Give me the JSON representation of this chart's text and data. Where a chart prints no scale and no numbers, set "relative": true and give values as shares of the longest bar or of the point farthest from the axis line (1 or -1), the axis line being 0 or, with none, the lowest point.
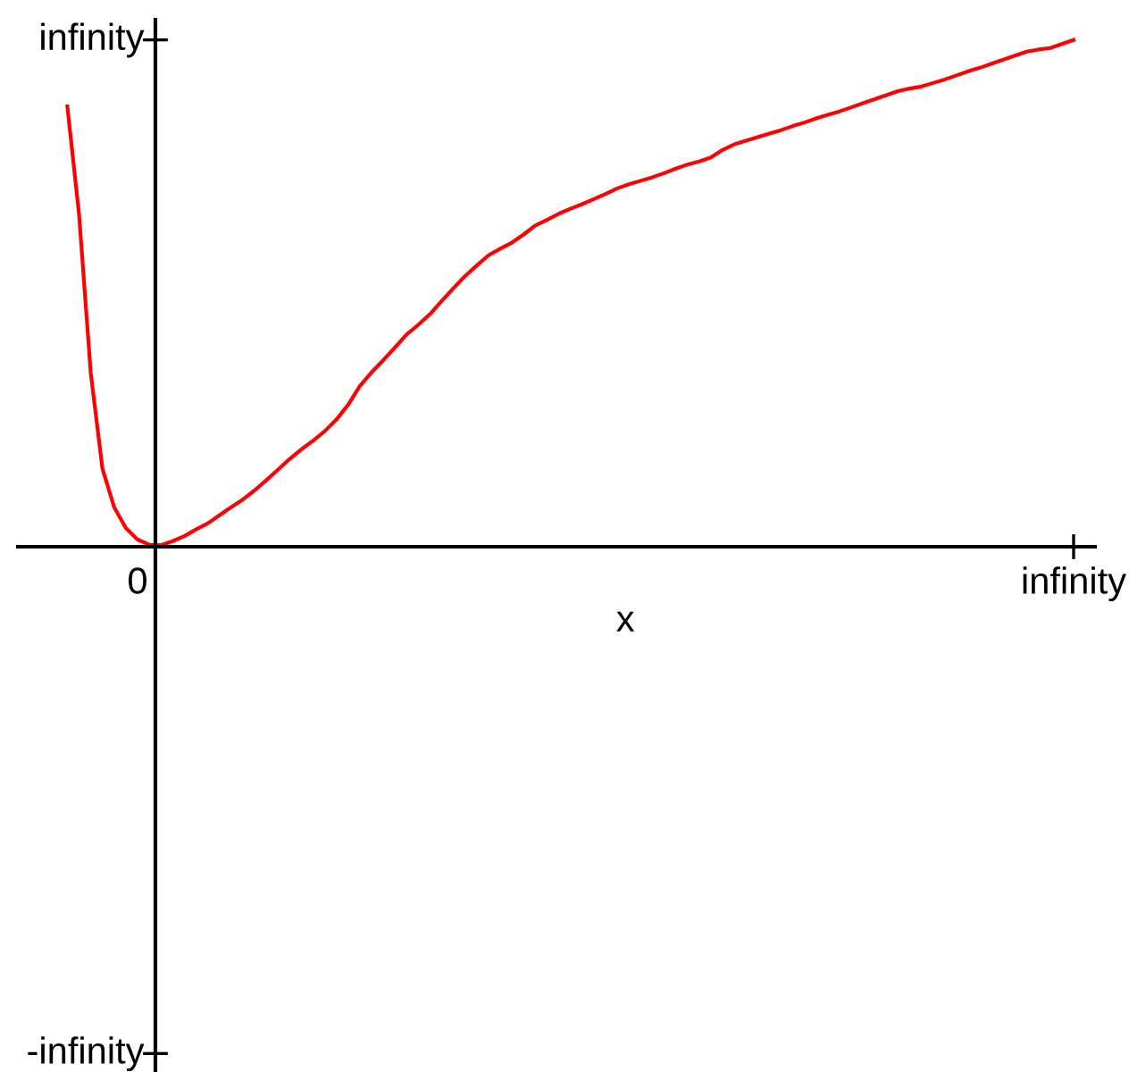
{
  "chart_data": {
    "type": "line",
    "xlabel": "x",
    "relative": true,
    "categories": [
      null,
      null,
      null,
      null,
      null,
      null,
      "0",
      null,
      null,
      null,
      null,
      null,
      null,
      null,
      null,
      null,
      null,
      null,
      null,
      null,
      null,
      null,
      null,
      null,
      null,
      null,
      null,
      null,
      null,
      null,
      null,
      null,
      null,
      null,
      null,
      null,
      null,
      null,
      null,
      null,
      null,
      null,
      null,
      null,
      null,
      null,
      null,
      null,
      null,
      null,
      null,
      null,
      null,
      null,
      null,
      null,
      null,
      null,
      null,
      null,
      null,
      null,
      null,
      null,
      null,
      null,
      null,
      null,
      null,
      null,
      null,
      null,
      null,
      null,
      null,
      null,
      null,
      null,
      null,
      null,
      null,
      null,
      null,
      null,
      null,
      null,
      "infinity"
    ],
    "series": [
      {
        "color": "#ff0000",
        "values": [
          0.869,
          0.656,
          0.343,
          0.154,
          0.078,
          0.037,
          0.014,
          0.004,
          0.003,
          0.011,
          0.021,
          0.034,
          0.046,
          0.062,
          0.078,
          0.093,
          0.111,
          0.131,
          0.152,
          0.173,
          0.192,
          0.209,
          0.228,
          0.251,
          0.28,
          0.317,
          0.344,
          0.368,
          0.393,
          0.419,
          0.438,
          0.459,
          0.485,
          0.51,
          0.534,
          0.555,
          0.575,
          0.588,
          0.6,
          0.616,
          0.634,
          0.645,
          0.657,
          0.667,
          0.676,
          0.686,
          0.696,
          0.707,
          0.715,
          0.722,
          0.729,
          0.737,
          0.746,
          0.754,
          0.76,
          0.768,
          0.783,
          0.794,
          0.801,
          0.808,
          0.815,
          0.822,
          0.83,
          0.837,
          0.845,
          0.852,
          0.859,
          0.867,
          0.875,
          0.883,
          0.891,
          0.899,
          0.904,
          0.908,
          0.915,
          0.922,
          0.93,
          0.938,
          0.945,
          0.953,
          0.961,
          0.969,
          0.977,
          0.981,
          0.984,
          0.992,
          1.0
        ]
      }
    ],
    "annotations": [
      "infinity",
      "-infinity"
    ],
    "line_style": "solid"
  }
}
